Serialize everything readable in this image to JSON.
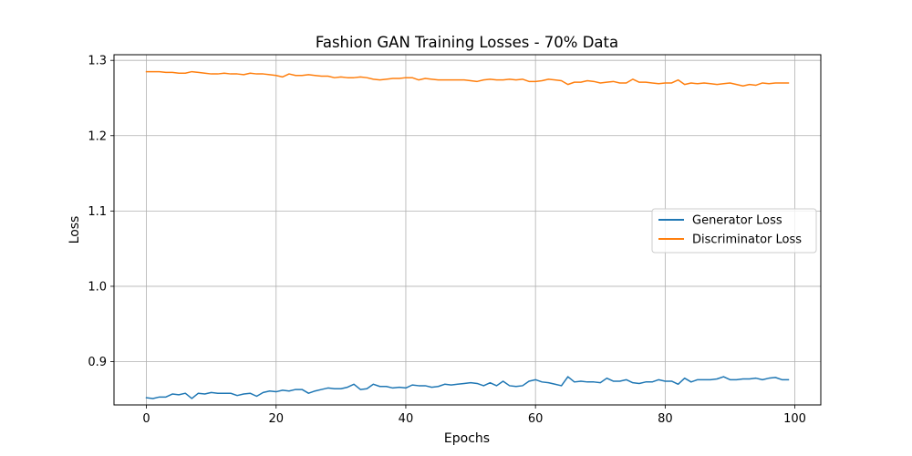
{
  "chart_data": {
    "type": "line",
    "title": "Fashion GAN Training Losses - 70% Data",
    "xlabel": "Epochs",
    "ylabel": "Loss",
    "xlim": [
      -5,
      104
    ],
    "ylim": [
      0.8425,
      1.3075
    ],
    "xticks": [
      0,
      20,
      40,
      60,
      80,
      100
    ],
    "yticks": [
      0.9,
      1.0,
      1.1,
      1.2,
      1.3
    ],
    "xtick_labels": [
      "0",
      "20",
      "40",
      "60",
      "80",
      "100"
    ],
    "ytick_labels": [
      "0.9",
      "1.0",
      "1.1",
      "1.2",
      "1.3"
    ],
    "grid": true,
    "legend_position": "center-right",
    "series": [
      {
        "name": "Generator Loss",
        "color": "#1f77b4",
        "values": [
          0.852,
          0.851,
          0.853,
          0.853,
          0.857,
          0.856,
          0.858,
          0.851,
          0.858,
          0.857,
          0.859,
          0.858,
          0.858,
          0.858,
          0.855,
          0.857,
          0.858,
          0.854,
          0.859,
          0.861,
          0.86,
          0.862,
          0.861,
          0.863,
          0.863,
          0.858,
          0.861,
          0.863,
          0.865,
          0.864,
          0.864,
          0.866,
          0.87,
          0.863,
          0.864,
          0.87,
          0.867,
          0.867,
          0.865,
          0.866,
          0.865,
          0.869,
          0.868,
          0.868,
          0.866,
          0.867,
          0.87,
          0.869,
          0.87,
          0.871,
          0.872,
          0.871,
          0.868,
          0.872,
          0.868,
          0.874,
          0.868,
          0.867,
          0.868,
          0.874,
          0.876,
          0.873,
          0.872,
          0.87,
          0.868,
          0.88,
          0.873,
          0.874,
          0.873,
          0.873,
          0.872,
          0.878,
          0.874,
          0.874,
          0.876,
          0.872,
          0.871,
          0.873,
          0.873,
          0.876,
          0.874,
          0.874,
          0.87,
          0.878,
          0.873,
          0.876,
          0.876,
          0.876,
          0.877,
          0.88,
          0.876,
          0.876,
          0.877,
          0.877,
          0.878,
          0.876,
          0.878,
          0.879,
          0.876,
          0.876
        ]
      },
      {
        "name": "Discriminator Loss",
        "color": "#ff7f0e",
        "values": [
          1.285,
          1.285,
          1.285,
          1.284,
          1.284,
          1.283,
          1.283,
          1.285,
          1.284,
          1.283,
          1.282,
          1.282,
          1.283,
          1.282,
          1.282,
          1.281,
          1.283,
          1.282,
          1.282,
          1.281,
          1.28,
          1.278,
          1.282,
          1.28,
          1.28,
          1.281,
          1.28,
          1.279,
          1.279,
          1.277,
          1.278,
          1.277,
          1.277,
          1.278,
          1.277,
          1.275,
          1.274,
          1.275,
          1.276,
          1.276,
          1.277,
          1.277,
          1.274,
          1.276,
          1.275,
          1.274,
          1.274,
          1.274,
          1.274,
          1.274,
          1.273,
          1.272,
          1.274,
          1.275,
          1.274,
          1.274,
          1.275,
          1.274,
          1.275,
          1.272,
          1.272,
          1.273,
          1.275,
          1.274,
          1.273,
          1.268,
          1.271,
          1.271,
          1.273,
          1.272,
          1.27,
          1.271,
          1.272,
          1.27,
          1.27,
          1.275,
          1.271,
          1.271,
          1.27,
          1.269,
          1.27,
          1.27,
          1.274,
          1.268,
          1.27,
          1.269,
          1.27,
          1.269,
          1.268,
          1.269,
          1.27,
          1.268,
          1.266,
          1.268,
          1.267,
          1.27,
          1.269,
          1.27,
          1.27,
          1.27
        ]
      }
    ]
  }
}
